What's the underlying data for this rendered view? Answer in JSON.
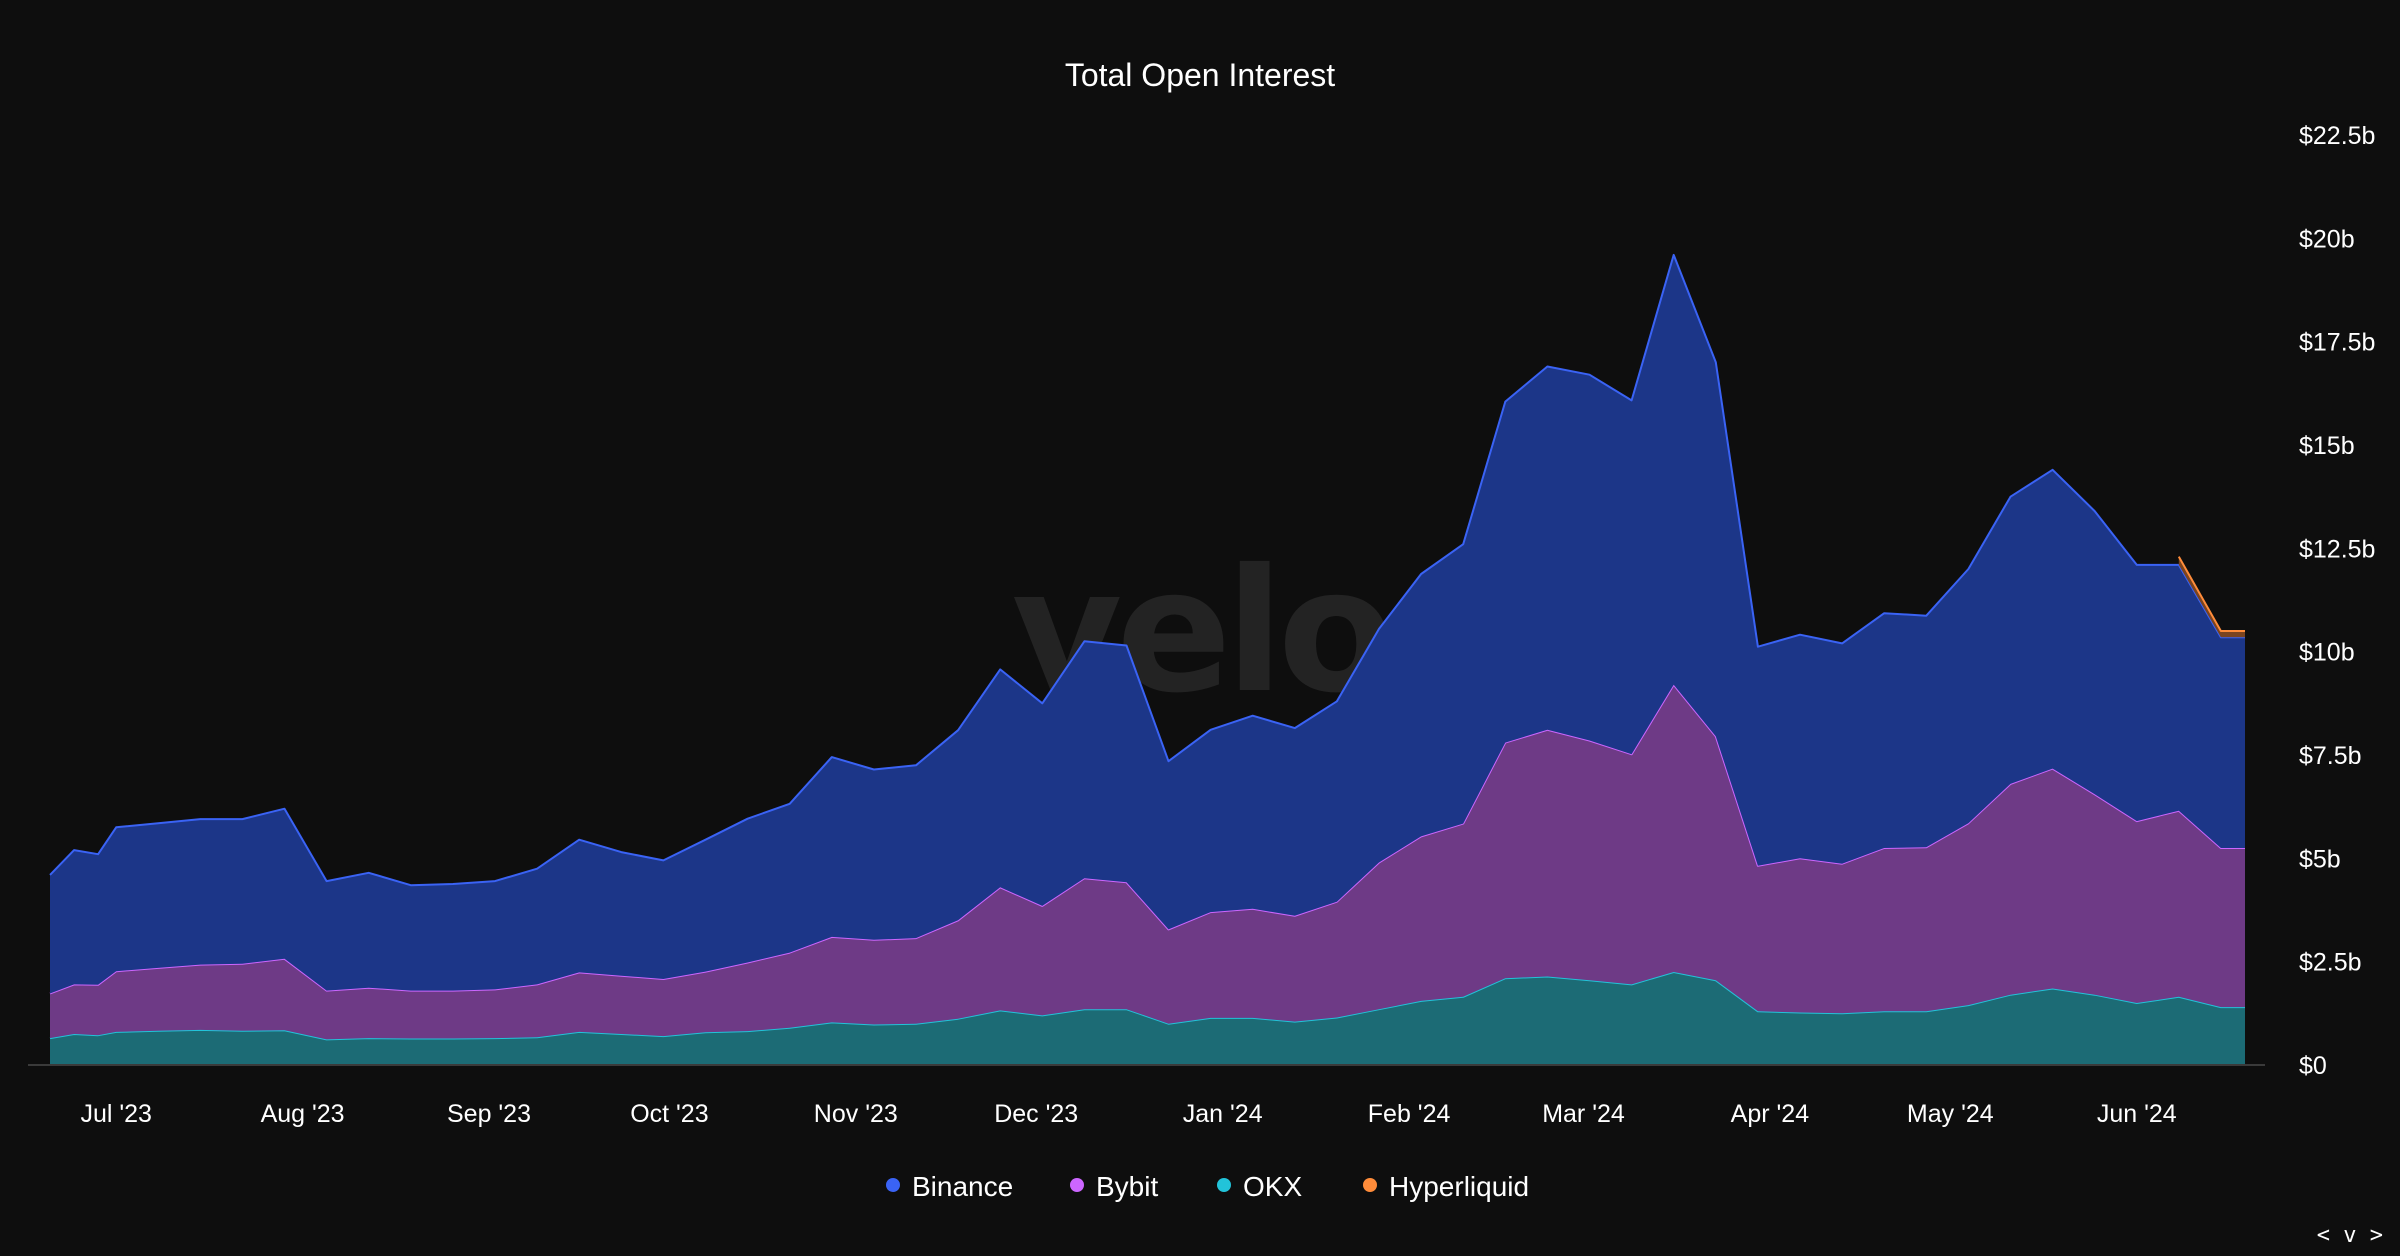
{
  "chart_data": {
    "type": "area",
    "stacked": true,
    "title": "Total Open Interest",
    "watermark": "velo",
    "x_ticks": [
      "Jul '23",
      "Aug '23",
      "Sep '23",
      "Oct '23",
      "Nov '23",
      "Dec '23",
      "Jan '24",
      "Feb '24",
      "Mar '24",
      "Apr '24",
      "May '24",
      "Jun '24"
    ],
    "y_ticks": [
      "$0",
      "$2.5b",
      "$5b",
      "$7.5b",
      "$10b",
      "$12.5b",
      "$15b",
      "$17.5b",
      "$20b",
      "$22.5b"
    ],
    "y_tick_values": [
      0,
      2.5,
      5,
      7.5,
      10,
      12.5,
      15,
      17.5,
      20,
      22.5
    ],
    "ylim": [
      0,
      22.5
    ],
    "y_unit": "$ billions",
    "y_axis_position": "right",
    "grid": false,
    "legend_position": "bottom-center",
    "x": [
      "2023-06-20",
      "2023-06-24",
      "2023-06-28",
      "2023-07-01",
      "2023-07-08",
      "2023-07-15",
      "2023-07-22",
      "2023-07-29",
      "2023-08-05",
      "2023-08-12",
      "2023-08-19",
      "2023-08-26",
      "2023-09-02",
      "2023-09-09",
      "2023-09-16",
      "2023-09-23",
      "2023-09-30",
      "2023-10-07",
      "2023-10-14",
      "2023-10-21",
      "2023-10-28",
      "2023-11-04",
      "2023-11-11",
      "2023-11-18",
      "2023-11-25",
      "2023-12-02",
      "2023-12-09",
      "2023-12-16",
      "2023-12-23",
      "2023-12-30",
      "2024-01-06",
      "2024-01-13",
      "2024-01-20",
      "2024-01-27",
      "2024-02-03",
      "2024-02-10",
      "2024-02-17",
      "2024-02-24",
      "2024-03-02",
      "2024-03-09",
      "2024-03-16",
      "2024-03-23",
      "2024-03-30",
      "2024-04-06",
      "2024-04-13",
      "2024-04-20",
      "2024-04-27",
      "2024-05-04",
      "2024-05-11",
      "2024-05-18",
      "2024-05-25",
      "2024-06-01",
      "2024-06-08",
      "2024-06-15",
      "2024-06-19"
    ],
    "series": [
      {
        "name": "OKX",
        "color": "#22c3d9",
        "fill": "#1c6b75",
        "values": [
          0.65,
          0.75,
          0.72,
          0.8,
          0.83,
          0.85,
          0.83,
          0.84,
          0.62,
          0.65,
          0.64,
          0.64,
          0.65,
          0.67,
          0.8,
          0.75,
          0.7,
          0.79,
          0.82,
          0.9,
          1.03,
          0.98,
          1.0,
          1.12,
          1.32,
          1.2,
          1.35,
          1.35,
          1.0,
          1.14,
          1.14,
          1.05,
          1.15,
          1.35,
          1.55,
          1.65,
          2.1,
          2.14,
          2.05,
          1.95,
          2.25,
          2.05,
          1.3,
          1.27,
          1.25,
          1.3,
          1.3,
          1.45,
          1.7,
          1.85,
          1.7,
          1.5,
          1.65,
          1.4,
          1.4
        ]
      },
      {
        "name": "Bybit",
        "color": "#cc66ff",
        "fill": "#6e3a86",
        "values": [
          1.08,
          1.2,
          1.22,
          1.47,
          1.52,
          1.58,
          1.62,
          1.73,
          1.18,
          1.22,
          1.16,
          1.16,
          1.18,
          1.28,
          1.44,
          1.41,
          1.38,
          1.47,
          1.66,
          1.82,
          2.07,
          2.05,
          2.07,
          2.38,
          2.98,
          2.65,
          3.17,
          3.07,
          2.28,
          2.56,
          2.64,
          2.56,
          2.8,
          3.55,
          3.98,
          4.19,
          5.7,
          5.97,
          5.8,
          5.57,
          6.95,
          5.9,
          3.52,
          3.73,
          3.62,
          3.95,
          3.97,
          4.4,
          5.1,
          5.32,
          4.85,
          4.4,
          4.5,
          3.85,
          3.85
        ]
      },
      {
        "name": "Binance",
        "color": "#3a63f5",
        "fill": "#1c3688",
        "values": [
          2.87,
          3.25,
          3.16,
          3.48,
          3.5,
          3.52,
          3.5,
          3.63,
          2.65,
          2.78,
          2.55,
          2.58,
          2.62,
          2.8,
          3.21,
          2.99,
          2.87,
          3.19,
          3.48,
          3.6,
          4.35,
          4.12,
          4.18,
          4.6,
          5.27,
          4.9,
          5.73,
          5.73,
          4.07,
          4.41,
          4.67,
          4.54,
          4.85,
          5.65,
          6.35,
          6.76,
          8.25,
          8.79,
          8.85,
          8.56,
          10.4,
          9.05,
          5.3,
          5.41,
          5.33,
          5.68,
          5.6,
          6.15,
          6.95,
          7.23,
          6.85,
          6.2,
          5.95,
          5.1,
          5.1
        ]
      },
      {
        "name": "Hyperliquid",
        "color": "#ff8c3a",
        "fill": "#7a4420",
        "values": [
          null,
          null,
          null,
          null,
          null,
          null,
          null,
          null,
          null,
          null,
          null,
          null,
          null,
          null,
          null,
          null,
          null,
          null,
          null,
          null,
          null,
          null,
          null,
          null,
          null,
          null,
          null,
          null,
          null,
          null,
          null,
          null,
          null,
          null,
          null,
          null,
          null,
          null,
          null,
          null,
          null,
          null,
          null,
          null,
          null,
          null,
          null,
          null,
          null,
          null,
          null,
          null,
          0.2,
          0.15,
          0.15
        ]
      }
    ],
    "legend_order": [
      "Binance",
      "Bybit",
      "OKX",
      "Hyperliquid"
    ],
    "nav_label": "< v >"
  }
}
